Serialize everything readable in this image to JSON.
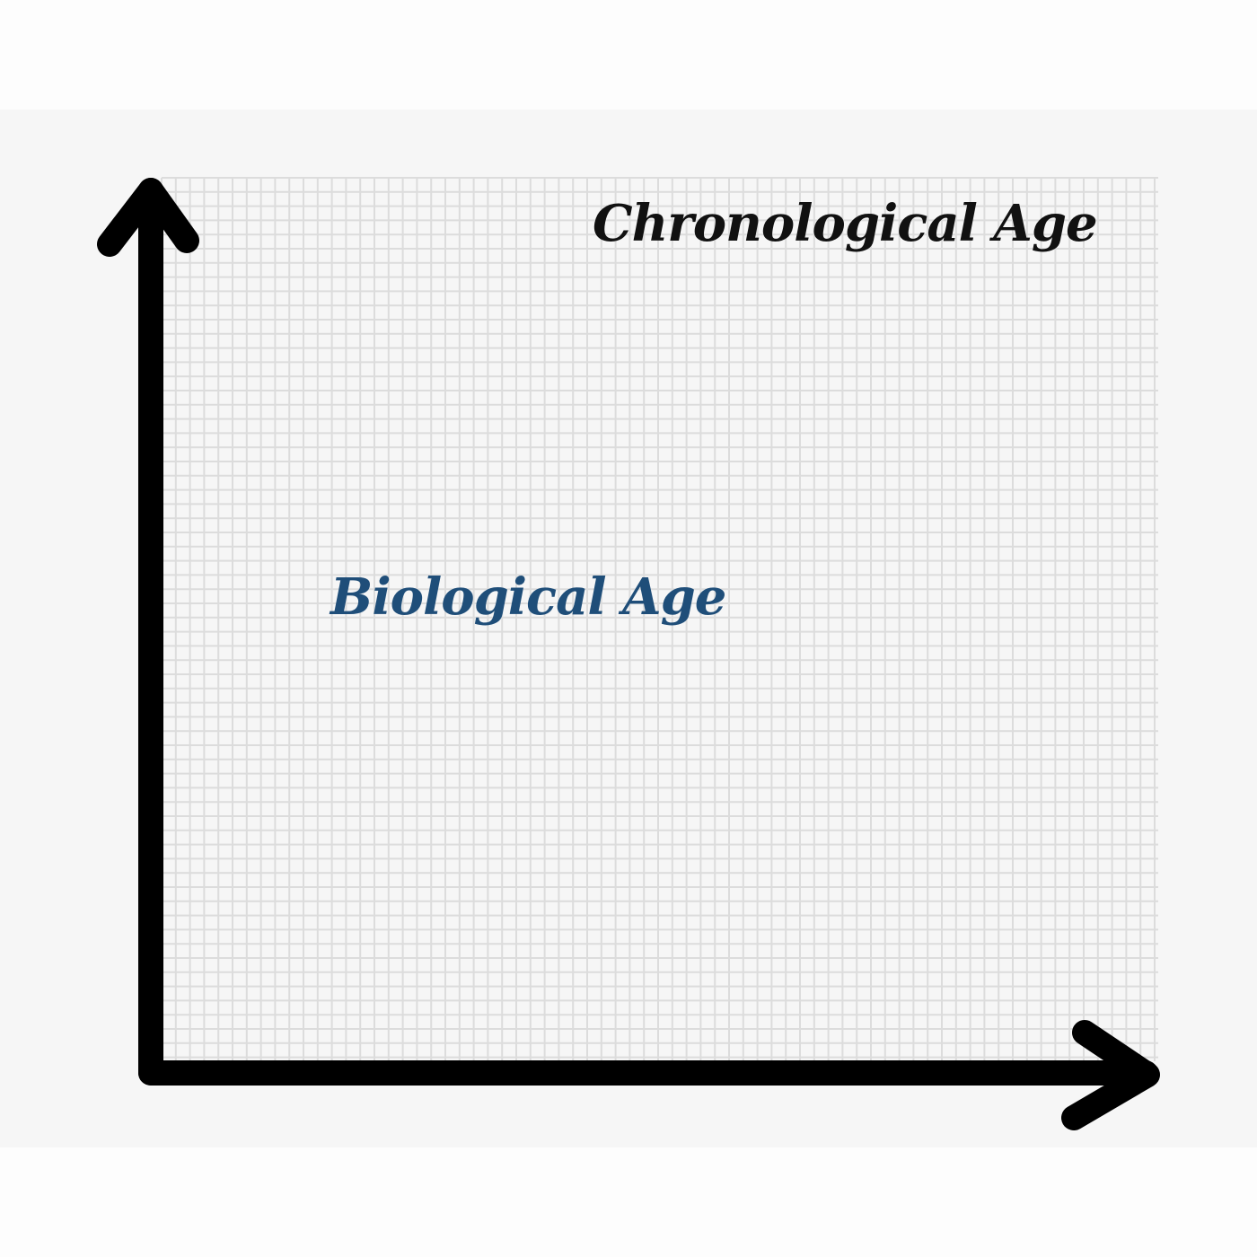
{
  "labels": {
    "chronological": "Chronological Age",
    "biological": "Biological Age"
  },
  "colors": {
    "axis": "#000000",
    "grid": "#dcdcdc",
    "chronological_text": "#111111",
    "biological_text": "#1f4e79"
  }
}
